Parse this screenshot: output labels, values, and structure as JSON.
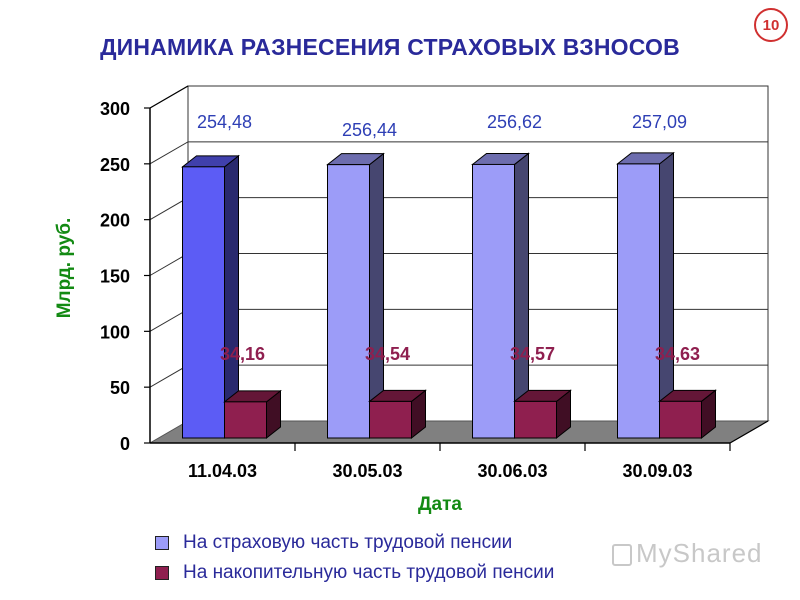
{
  "slide": {
    "title": "ДИНАМИКА РАЗНЕСЕНИЯ СТРАХОВЫХ ВЗНОСОВ",
    "page_number": "10",
    "watermark": "MyShared"
  },
  "colors": {
    "title": "#2a2a9a",
    "axis_label": "#138a13",
    "insurance_first": "#5c5cf5",
    "insurance": "#9c9cf8",
    "savings": "#8f1f4f",
    "savings_label": "#8f1f4f",
    "value_label": "#2e3fb5"
  },
  "chart_data": {
    "type": "bar",
    "title": "ДИНАМИКА РАЗНЕСЕНИЯ СТРАХОВЫХ ВЗНОСОВ",
    "xlabel": "Дата",
    "ylabel": "Млрд. руб.",
    "categories": [
      "11.04.03",
      "30.05.03",
      "30.06.03",
      "30.09.03"
    ],
    "ylim": [
      0,
      300
    ],
    "yticks": [
      0,
      50,
      100,
      150,
      200,
      250,
      300
    ],
    "grid": true,
    "three_d": true,
    "legend_position": "bottom",
    "series": [
      {
        "name": "На страховую часть трудовой пенсии",
        "values": [
          254.48,
          256.44,
          256.62,
          257.09
        ],
        "labels": [
          "254,48",
          "256,44",
          "256,62",
          "257,09"
        ]
      },
      {
        "name": "На накопительную часть трудовой пенсии",
        "values": [
          34.16,
          34.54,
          34.57,
          34.63
        ],
        "labels": [
          "34,16",
          "34,54",
          "34,57",
          "34,63"
        ]
      }
    ]
  }
}
